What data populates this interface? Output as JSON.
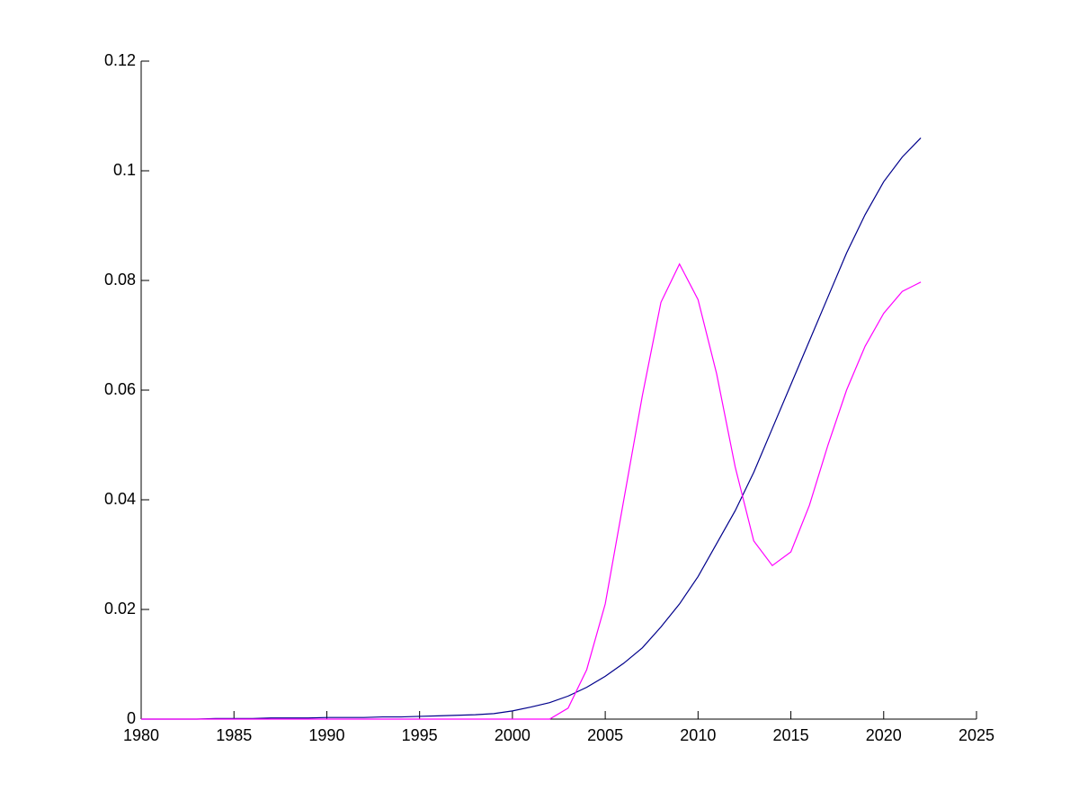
{
  "chart_data": {
    "type": "line",
    "x": [
      1980,
      1981,
      1982,
      1983,
      1984,
      1985,
      1986,
      1987,
      1988,
      1989,
      1990,
      1991,
      1992,
      1993,
      1994,
      1995,
      1996,
      1997,
      1998,
      1999,
      2000,
      2001,
      2002,
      2003,
      2004,
      2005,
      2006,
      2007,
      2008,
      2009,
      2010,
      2011,
      2012,
      2013,
      2014,
      2015,
      2016,
      2017,
      2018,
      2019,
      2020,
      2021,
      2022
    ],
    "series": [
      {
        "color": "#00008b",
        "values": [
          0,
          0,
          0,
          0,
          0.0001,
          0.0001,
          0.0001,
          0.0002,
          0.0002,
          0.0002,
          0.0003,
          0.0003,
          0.0003,
          0.0004,
          0.0004,
          0.0005,
          0.0006,
          0.0007,
          0.0008,
          0.001,
          0.0015,
          0.0022,
          0.003,
          0.0042,
          0.0058,
          0.0078,
          0.0102,
          0.013,
          0.0168,
          0.021,
          0.026,
          0.032,
          0.038,
          0.045,
          0.053,
          0.061,
          0.069,
          0.077,
          0.085,
          0.092,
          0.098,
          0.1025,
          0.106
        ]
      },
      {
        "color": "#ff00ff",
        "values": [
          0,
          0,
          0,
          0,
          0,
          0,
          0,
          0,
          0,
          0,
          0,
          0,
          0,
          0,
          0,
          0,
          0,
          0,
          0,
          0,
          0,
          0,
          0,
          0.002,
          0.009,
          0.021,
          0.04,
          0.059,
          0.076,
          0.083,
          0.0765,
          0.063,
          0.046,
          0.0325,
          0.028,
          0.0305,
          0.039,
          0.05,
          0.06,
          0.068,
          0.074,
          0.078,
          0.0797
        ]
      }
    ],
    "xlim": [
      1980,
      2025
    ],
    "xticks": [
      1980,
      1985,
      1990,
      1995,
      2000,
      2005,
      2010,
      2015,
      2020,
      2025
    ],
    "ylim": [
      0,
      0.12
    ],
    "yticks": [
      0,
      0.02,
      0.04,
      0.06,
      0.08,
      0.1,
      0.12
    ]
  }
}
